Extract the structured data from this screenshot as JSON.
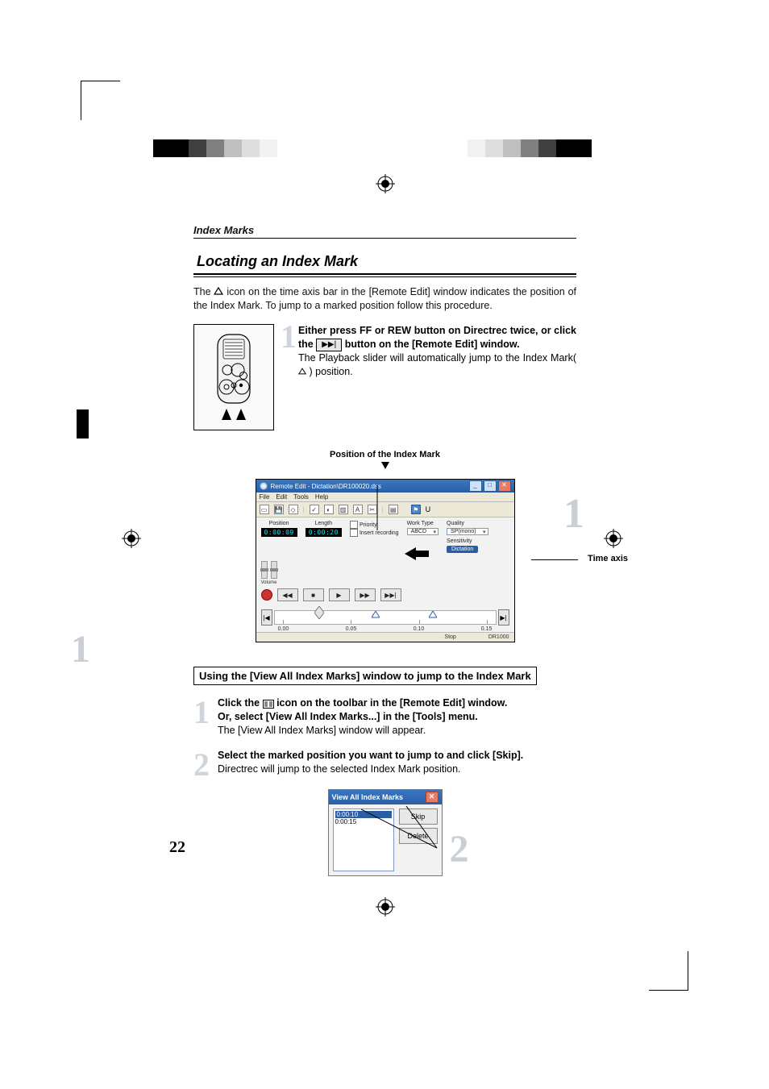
{
  "page_number": "22",
  "section_label": "Index Marks",
  "heading": "Locating an Index Mark",
  "intro_pre": "The ",
  "intro_post": " icon on the time axis bar in the [Remote Edit] window indicates the position of  the Index Mark. To jump to a marked position follow this procedure.",
  "step1": {
    "num": "1",
    "bold_a": "Either press ",
    "ff": "FF",
    "or": " or ",
    "rew": "REW",
    "bold_b": " button on Directrec twice, or click the ",
    "bold_c": " button on the [Remote Edit] window.",
    "plain": "The Playback slider will automatically jump to the Index Mark(",
    "plain_end": ") position."
  },
  "caption_index_pos": "Position of the Index Mark",
  "remote_edit": {
    "title": "Remote Edit - Dictation\\DR100020.dss",
    "menus": [
      "File",
      "Edit",
      "Tools",
      "Help"
    ],
    "labels": {
      "position": "Position",
      "length": "Length",
      "priority": "Priority",
      "insert": "Insert recording",
      "worktype": "Work Type",
      "worktype_val": "ABCD",
      "quality": "Quality",
      "quality_val": "SP(mono)",
      "sensitivity": "Sensitivity",
      "sens_val": "Dictation",
      "volume": "Volume"
    },
    "pos_val": "0:00:09",
    "len_val": "0:00:20",
    "ticks": [
      "0.00",
      "0.05",
      "0.10",
      "0.15"
    ],
    "status_left": "Stop",
    "status_right": "DR1000",
    "axis_big_num": "1",
    "axis_label": "Time axis"
  },
  "boxed_sub": "Using the [View All Index Marks] window to jump to the Index Mark",
  "stepA": {
    "num": "1",
    "b1": "Click the ",
    "b2": " icon on the toolbar in the [Remote Edit] window.",
    "b3": "Or, select [View All Index Marks...] in the [Tools] menu.",
    "plain": "The [View All Index Marks] window will appear."
  },
  "stepB": {
    "num": "2",
    "b": "Select the marked position you want to jump to and click [Skip].",
    "plain": "Directrec will jump to the selected Index Mark position."
  },
  "dialog": {
    "title": "View All Index Marks",
    "rows": [
      "0:00:10",
      "0:00:15"
    ],
    "skip": "Skip",
    "delete": "Delete",
    "num": "2"
  },
  "color_bars": {
    "left": [
      "#000000",
      "#000000",
      "#404040",
      "#808080",
      "#bfbfbf",
      "#dedede",
      "#f2f2f2",
      "#ffffff"
    ],
    "right": [
      "#ffffff",
      "#f2f2f2",
      "#dedede",
      "#bfbfbf",
      "#808080",
      "#404040",
      "#000000",
      "#000000"
    ]
  },
  "styles": {
    "page_bg": "#ffffff",
    "ghost_num_color": "#c9cfd4",
    "heading_color": "#000000"
  }
}
